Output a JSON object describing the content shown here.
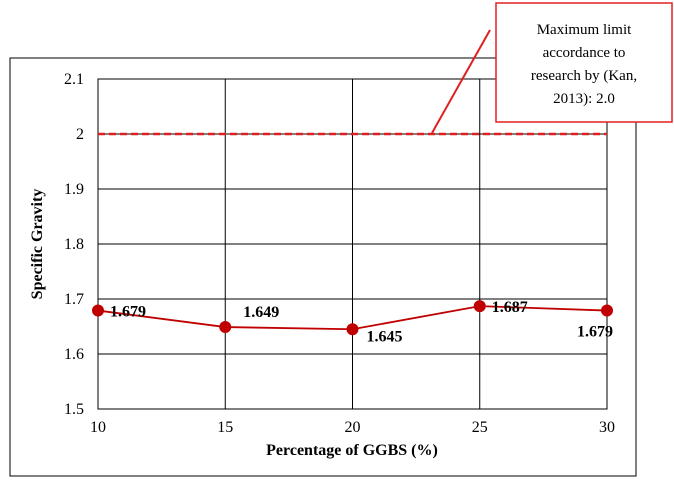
{
  "chart_data": {
    "type": "line",
    "title": "",
    "xlabel": "Percentage of GGBS (%)",
    "ylabel": "Specific Gravity",
    "x": [
      10,
      15,
      20,
      25,
      30
    ],
    "x_ticks": [
      "10",
      "15",
      "20",
      "25",
      "30"
    ],
    "y_ticks": [
      "1.5",
      "1.6",
      "1.7",
      "1.8",
      "1.9",
      "2",
      "2.1"
    ],
    "xlim": [
      10,
      30
    ],
    "ylim": [
      1.5,
      2.1
    ],
    "grid": true,
    "series": [
      {
        "values": [
          1.679,
          1.649,
          1.645,
          1.687,
          1.679
        ],
        "labels": [
          "1.679",
          "1.649",
          "1.645",
          "1.687",
          "1.679"
        ],
        "color": "#c00000"
      }
    ],
    "reference_line": {
      "value": 2.0,
      "style": "dashed",
      "color": "#e02020"
    },
    "annotation": {
      "lines": [
        "Maximum limit",
        "accordance to",
        "research by (Kan,",
        "2013): 2.0"
      ],
      "border_color": "#e02020"
    }
  }
}
